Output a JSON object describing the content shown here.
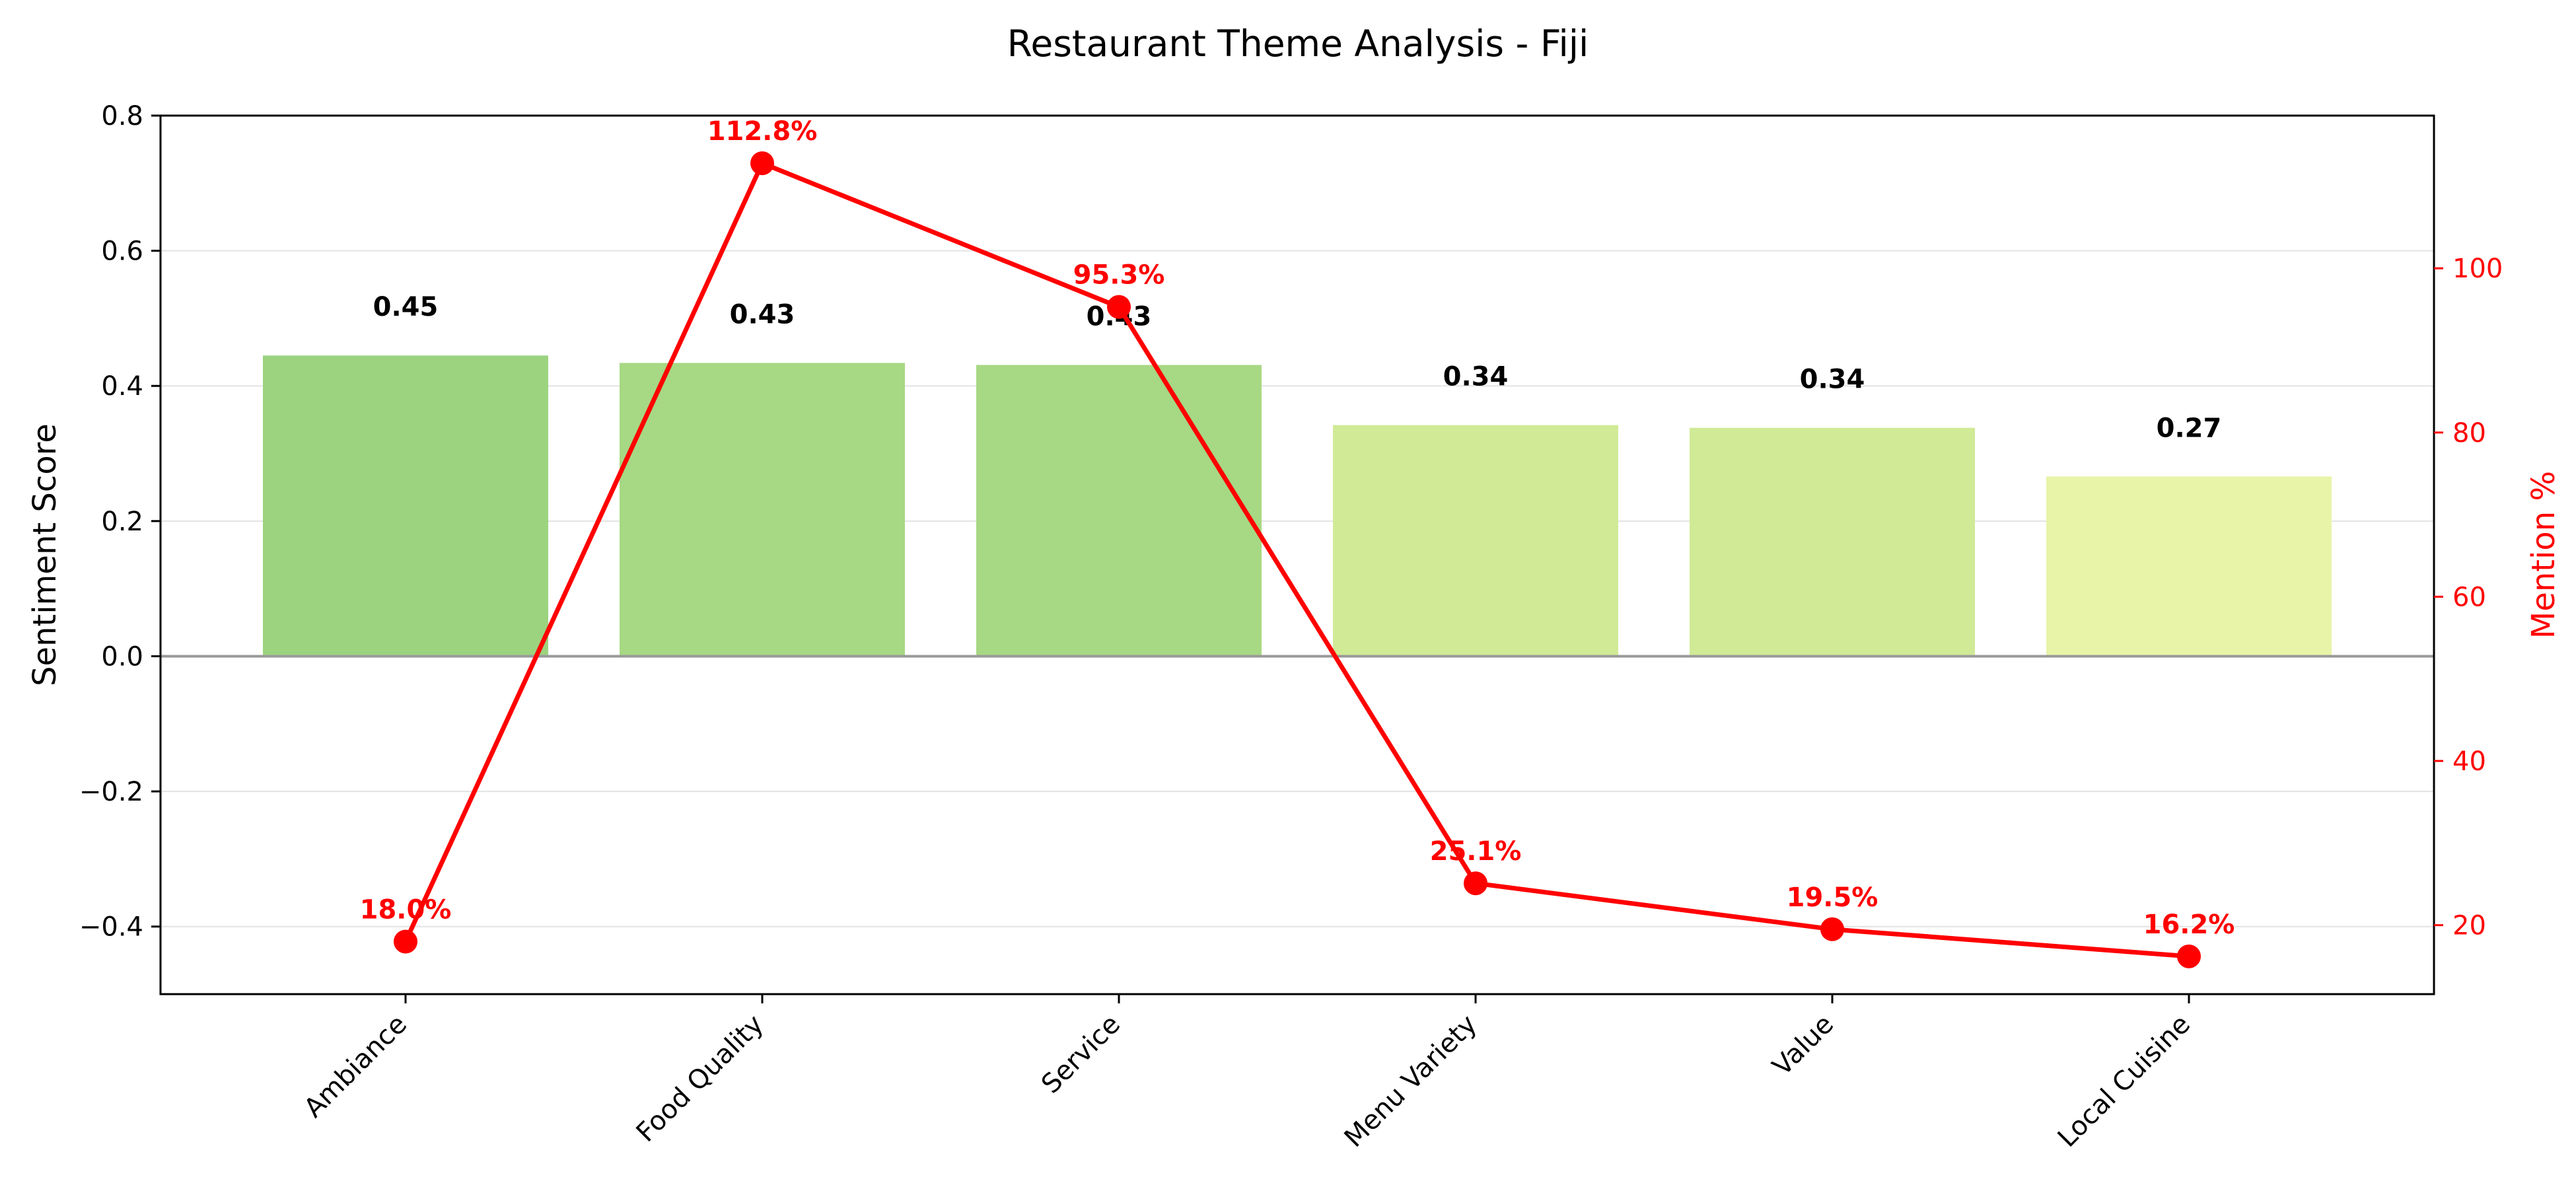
{
  "chart_data": {
    "type": "bar",
    "title": "Restaurant Theme Analysis - Fiji",
    "categories": [
      "Ambiance",
      "Food Quality",
      "Service",
      "Menu Variety",
      "Value",
      "Local Cuisine"
    ],
    "series": [
      {
        "name": "Sentiment Score",
        "type": "bar",
        "axis": "left",
        "values": [
          0.445,
          0.434,
          0.431,
          0.342,
          0.338,
          0.266
        ],
        "labels": [
          "0.45",
          "0.43",
          "0.43",
          "0.34",
          "0.34",
          "0.27"
        ],
        "colors": [
          "#9cd37f",
          "#a7d884",
          "#a7d884",
          "#d0ea96",
          "#d0ea96",
          "#e8f4a8"
        ]
      },
      {
        "name": "Mention %",
        "type": "line",
        "axis": "right",
        "values": [
          18.0,
          112.8,
          95.3,
          25.1,
          19.5,
          16.2
        ],
        "labels": [
          "18.0%",
          "112.8%",
          "95.3%",
          "25.1%",
          "19.5%",
          "16.2%"
        ],
        "color": "#ff0000"
      }
    ],
    "ylabel": "Sentiment Score",
    "ylim": [
      -0.5,
      0.8
    ],
    "yticks": [
      0.8,
      0.6,
      0.4,
      0.2,
      0.0,
      -0.2,
      -0.4
    ],
    "ytick_labels": [
      "0.8",
      "0.6",
      "0.4",
      "0.2",
      "0.0",
      "−0.2",
      "−0.4"
    ],
    "y2label": "Mention %",
    "y2lim": [
      11.6,
      118.6
    ],
    "y2ticks": [
      20,
      40,
      60,
      80,
      100
    ],
    "y2tick_labels": [
      "20",
      "40",
      "60",
      "80",
      "100"
    ],
    "grid": true,
    "zero_line": true
  }
}
